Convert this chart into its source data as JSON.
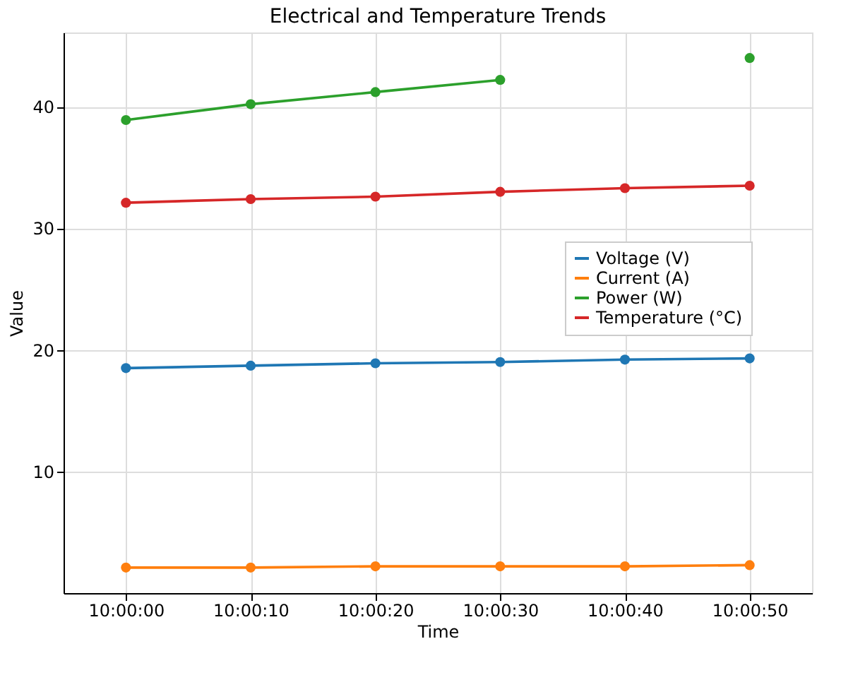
{
  "chart_data": {
    "type": "line",
    "title": "Electrical and Temperature Trends",
    "xlabel": "Time",
    "ylabel": "Value",
    "categories": [
      "10:00:00",
      "10:00:10",
      "10:00:20",
      "10:00:30",
      "10:00:40",
      "10:00:50"
    ],
    "series": [
      {
        "name": "Voltage (V)",
        "color": "#1f77b4",
        "values": [
          18.5,
          18.7,
          18.9,
          19.0,
          19.2,
          19.3
        ]
      },
      {
        "name": "Current (A)",
        "color": "#ff7f0e",
        "values": [
          2.1,
          2.1,
          2.2,
          2.2,
          2.2,
          2.3
        ]
      },
      {
        "name": "Power (W)",
        "color": "#2ca02c",
        "values": [
          38.9,
          40.2,
          41.2,
          42.2,
          null,
          44.0
        ]
      },
      {
        "name": "Temperature (°C)",
        "color": "#d62728",
        "values": [
          32.1,
          32.4,
          32.6,
          33.0,
          33.3,
          33.5
        ]
      }
    ],
    "ylim": [
      0.0,
      46.1
    ],
    "yticks": [
      10,
      20,
      30,
      40
    ],
    "grid": true,
    "legend": "right",
    "marker": "circle",
    "line_style": "solid"
  }
}
